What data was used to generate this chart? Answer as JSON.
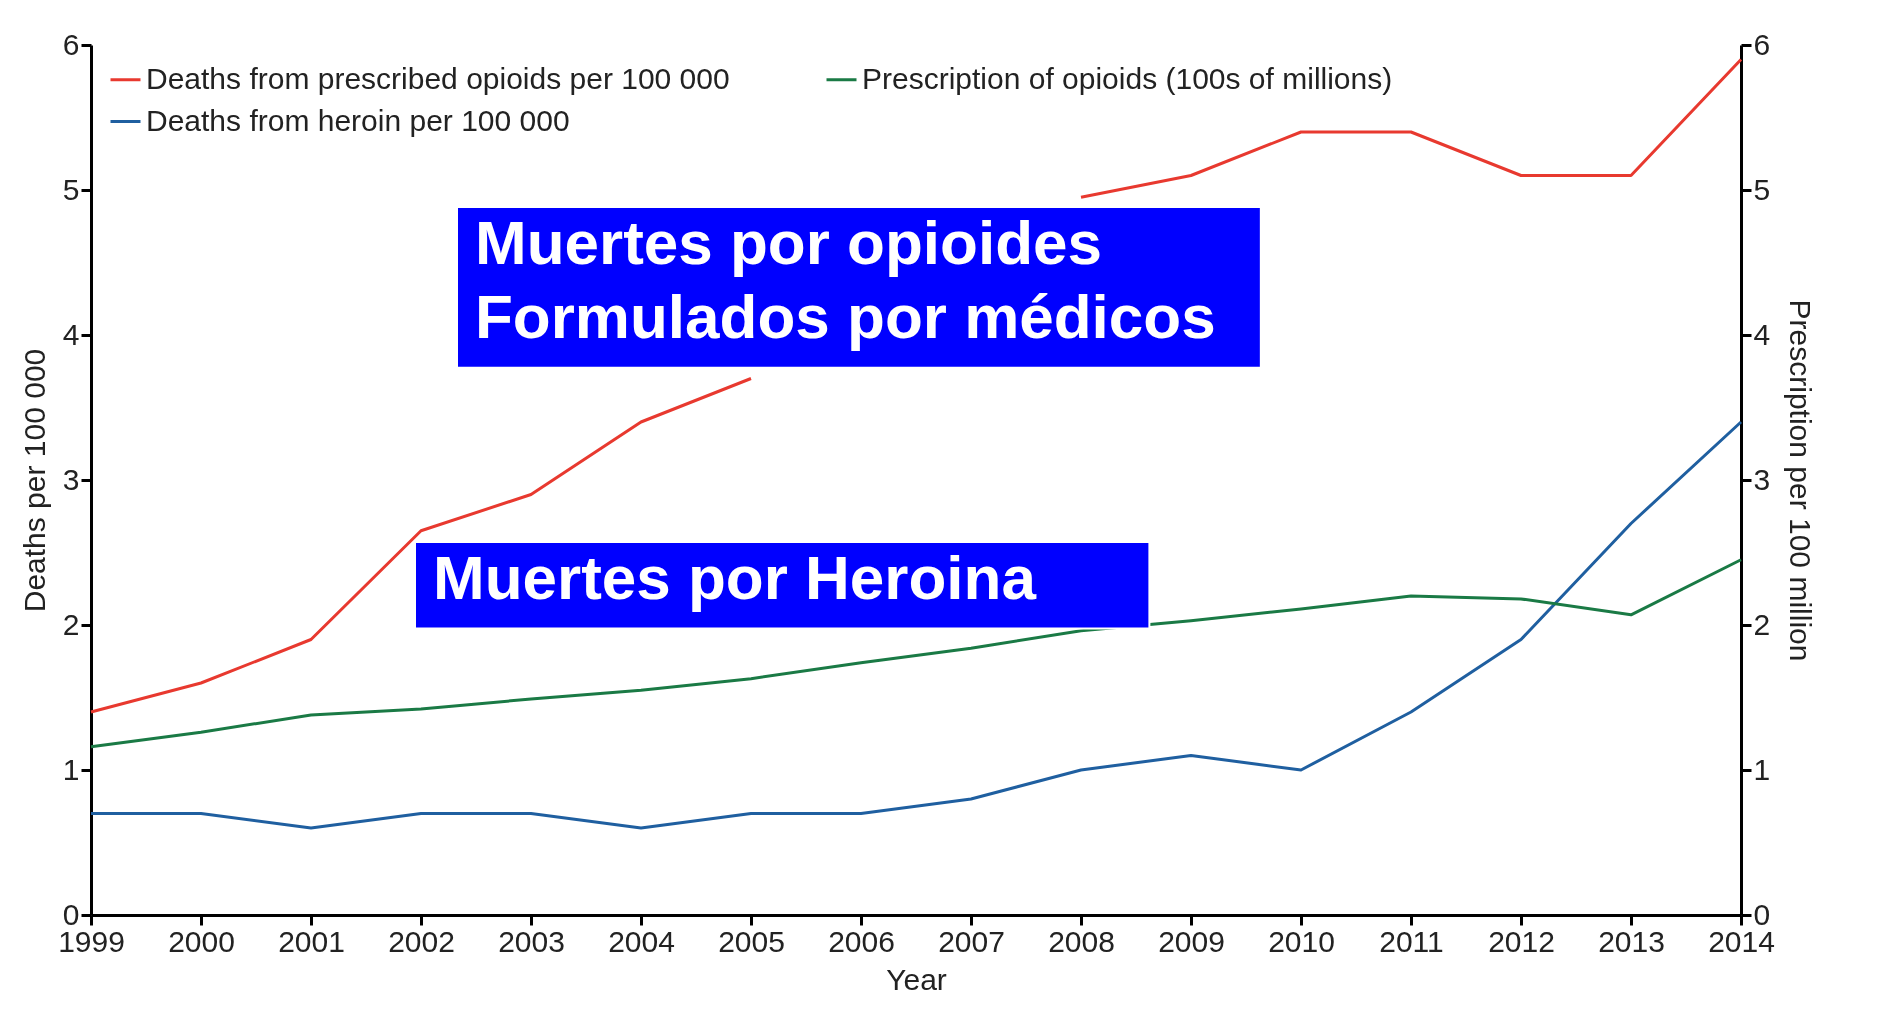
{
  "chart_data": {
    "type": "line",
    "xlabel": "Year",
    "ylabel": "Deaths per 100 000",
    "y2label": "Prescription per 100 million",
    "x": [
      1999,
      2000,
      2001,
      2002,
      2003,
      2004,
      2005,
      2006,
      2007,
      2008,
      2009,
      2010,
      2011,
      2012,
      2013,
      2014
    ],
    "xlim": [
      1999,
      2014
    ],
    "xticks": [
      1999,
      2000,
      2001,
      2002,
      2003,
      2004,
      2005,
      2006,
      2007,
      2008,
      2009,
      2010,
      2011,
      2012,
      2013,
      2014
    ],
    "ylim": [
      0,
      6
    ],
    "yticks": [
      0,
      1,
      2,
      3,
      4,
      5,
      6
    ],
    "y2lim": [
      0,
      6
    ],
    "y2ticks": [
      0,
      1,
      2,
      3,
      4,
      5,
      6
    ],
    "series": [
      {
        "name": "Deaths from prescribed opioids per 100 000",
        "color": "#e8392f",
        "values": [
          1.4,
          1.6,
          1.9,
          2.65,
          2.9,
          3.4,
          3.7,
          null,
          null,
          4.95,
          5.1,
          5.4,
          5.4,
          5.1,
          5.1,
          5.9
        ]
      },
      {
        "name": "Prescription of opioids (100s of millions)",
        "color": "#1a7a45",
        "axis": "y2",
        "values": [
          1.16,
          1.26,
          1.38,
          1.42,
          1.49,
          1.55,
          1.63,
          1.74,
          1.84,
          1.96,
          2.03,
          2.11,
          2.2,
          2.18,
          2.07,
          2.45
        ]
      },
      {
        "name": "Deaths from heroin per 100 000",
        "color": "#1f5fa0",
        "values": [
          0.7,
          0.7,
          0.6,
          0.7,
          0.7,
          0.6,
          0.7,
          0.7,
          0.8,
          1.0,
          1.1,
          1.0,
          1.4,
          1.9,
          2.7,
          3.4
        ]
      }
    ],
    "annotations": [
      "Muertes  por opioides\nFormulados por médicos",
      "Muertes  por Heroina"
    ],
    "grid": false,
    "legend": "top",
    "line_style": "solid",
    "marker": "none"
  }
}
